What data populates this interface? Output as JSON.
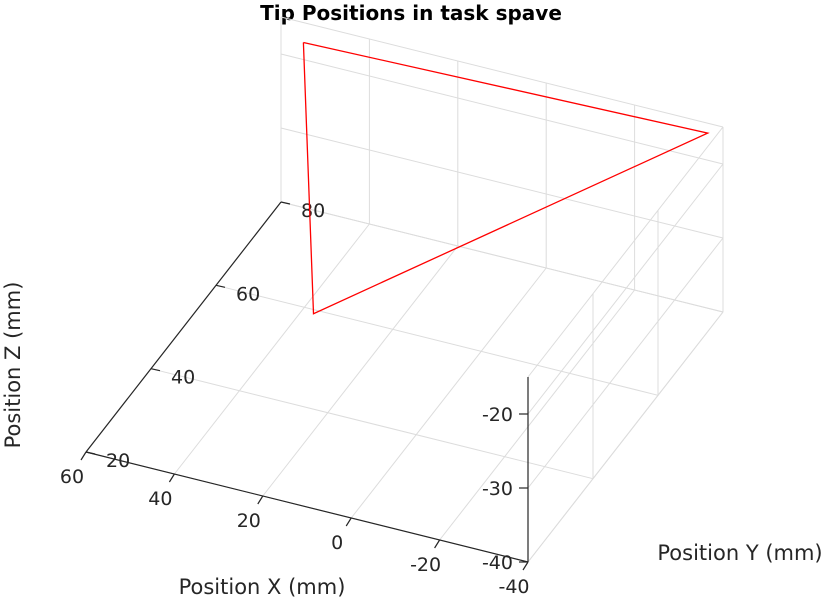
{
  "chart_data": {
    "type": "line3d",
    "title": "Tip Positions in task spave",
    "xlabel": "Position X (mm)",
    "ylabel": "Position Y (mm)",
    "zlabel": "Position Z (mm)",
    "xlim": [
      -40,
      60
    ],
    "ylim": [
      20,
      80
    ],
    "zlim": [
      -40,
      -15
    ],
    "xticks": [
      "-40",
      "-20",
      "0",
      "20",
      "40",
      "60"
    ],
    "yticks": [
      "20",
      "40",
      "60",
      "80"
    ],
    "zticks": [
      "-40",
      "-30",
      "-20"
    ],
    "grid": true,
    "series": [
      {
        "color": "#ff0000",
        "points": [
          {
            "x": 52,
            "y": 76,
            "z": -15
          },
          {
            "x": -38,
            "y": 78,
            "z": -15
          },
          {
            "x": 10,
            "y": 22,
            "z": -15
          },
          {
            "x": 52,
            "y": 76,
            "z": -15
          }
        ]
      }
    ]
  }
}
